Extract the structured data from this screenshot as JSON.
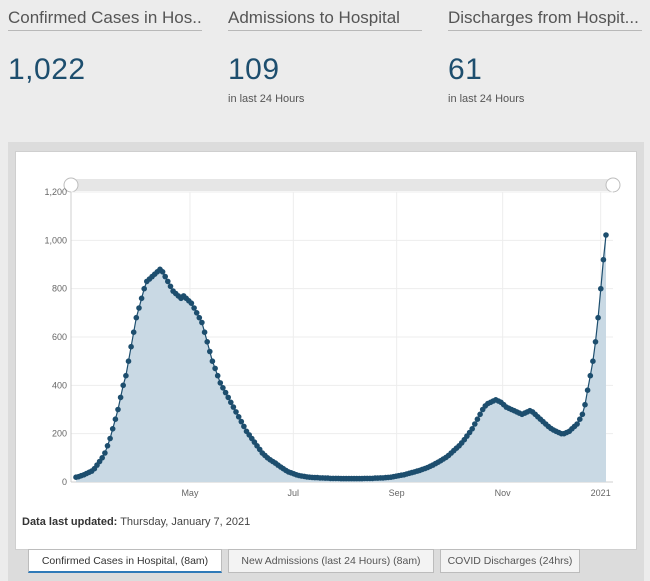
{
  "kpis": [
    {
      "title": "Confirmed Cases in Hos...",
      "value": "1,022",
      "sub": ""
    },
    {
      "title": "Admissions to Hospital",
      "value": "109",
      "sub": "in last 24 Hours"
    },
    {
      "title": "Discharges from Hospit...",
      "value": "61",
      "sub": "in last 24 Hours"
    }
  ],
  "updated": {
    "label": "Data last updated:",
    "text": " Thursday, January 7, 2021"
  },
  "tabs": [
    "Confirmed Cases in Hospital, (8am)",
    "New Admissions (last 24 Hours) (8am)",
    "COVID Discharges (24hrs)"
  ],
  "colors": {
    "line": "#1d4e6e",
    "fill": "#c9d9e4",
    "accent": "#2f7ab8"
  },
  "chart_data": {
    "type": "area",
    "title": "",
    "xlabel": "",
    "ylabel": "",
    "x_tick_labels": [
      "May",
      "Jul",
      "Sep",
      "Nov",
      "2021"
    ],
    "y_tick_labels": [
      "0",
      "200",
      "400",
      "600",
      "800",
      "1,000",
      "1,200"
    ],
    "ylim": [
      0,
      1200
    ],
    "grid": true,
    "scrollbar": true,
    "series": [
      {
        "values": [
          20,
          22,
          26,
          30,
          35,
          40,
          45,
          55,
          70,
          85,
          100,
          120,
          150,
          180,
          220,
          260,
          300,
          350,
          400,
          440,
          500,
          560,
          620,
          680,
          720,
          760,
          800,
          830,
          840,
          850,
          860,
          870,
          880,
          870,
          850,
          830,
          810,
          790,
          780,
          770,
          760,
          770,
          760,
          750,
          740,
          720,
          700,
          680,
          660,
          620,
          580,
          540,
          500,
          470,
          440,
          410,
          390,
          370,
          350,
          330,
          310,
          290,
          270,
          250,
          230,
          210,
          195,
          180,
          165,
          150,
          135,
          120,
          110,
          100,
          92,
          85,
          78,
          70,
          62,
          55,
          48,
          42,
          38,
          34,
          30,
          27,
          25,
          23,
          21,
          20,
          19,
          18,
          18,
          17,
          17,
          16,
          16,
          15,
          15,
          15,
          15,
          14,
          14,
          14,
          14,
          14,
          14,
          14,
          14,
          14,
          15,
          15,
          15,
          15,
          16,
          16,
          17,
          17,
          18,
          19,
          20,
          22,
          24,
          26,
          28,
          30,
          33,
          36,
          39,
          42,
          45,
          48,
          52,
          56,
          60,
          65,
          70,
          76,
          82,
          88,
          95,
          102,
          110,
          120,
          130,
          140,
          150,
          162,
          175,
          190,
          205,
          220,
          240,
          260,
          280,
          300,
          315,
          325,
          330,
          335,
          340,
          335,
          330,
          320,
          310,
          305,
          300,
          295,
          290,
          285,
          280,
          285,
          290,
          295,
          290,
          280,
          270,
          260,
          250,
          240,
          230,
          222,
          215,
          210,
          205,
          200,
          200,
          205,
          210,
          220,
          230,
          240,
          260,
          280,
          320,
          380,
          440,
          500,
          580,
          680,
          800,
          920,
          1022
        ]
      }
    ]
  }
}
